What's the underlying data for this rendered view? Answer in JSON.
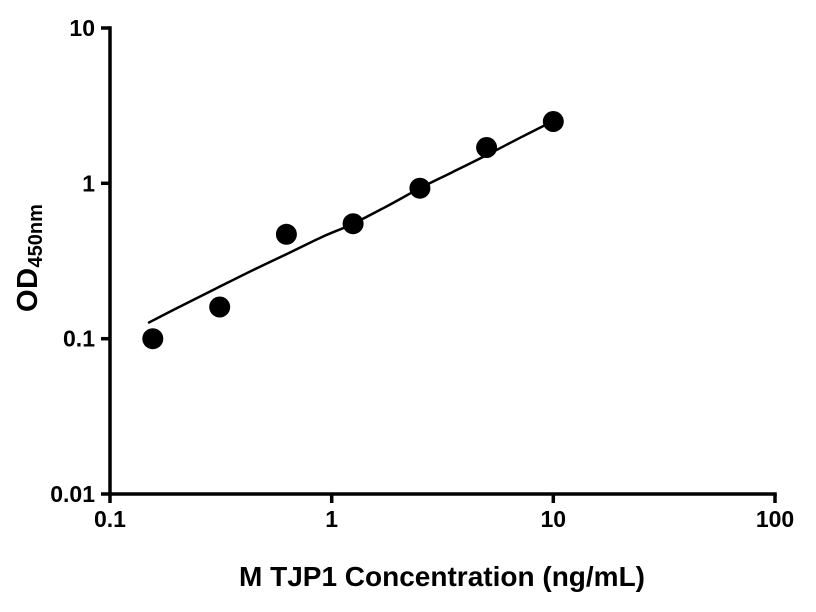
{
  "page": {
    "background": "#ffffff"
  },
  "chart_data": {
    "type": "scatter",
    "title": "",
    "xlabel": "M TJP1 Concentration (ng/mL)",
    "ylabel": "OD450nm",
    "ylabel_main": "OD",
    "ylabel_sub": "450nm",
    "x_scale": "log",
    "y_scale": "log",
    "xlim": [
      0.1,
      100
    ],
    "ylim": [
      0.01,
      10
    ],
    "grid": false,
    "legend": false,
    "axis_color": "#000000",
    "marker_color": "#000000",
    "line_color": "#000000",
    "x_ticks": [
      {
        "value": 0.1,
        "label": "0.1"
      },
      {
        "value": 1,
        "label": "1"
      },
      {
        "value": 10,
        "label": "10"
      },
      {
        "value": 100,
        "label": "100"
      }
    ],
    "y_ticks": [
      {
        "value": 0.01,
        "label": "0.01"
      },
      {
        "value": 0.1,
        "label": "0.1"
      },
      {
        "value": 1,
        "label": "1"
      },
      {
        "value": 10,
        "label": "10"
      }
    ],
    "points": {
      "x": [
        0.156,
        0.3125,
        0.625,
        1.25,
        2.5,
        5,
        10
      ],
      "y": [
        0.1,
        0.16,
        0.47,
        0.55,
        0.93,
        1.7,
        2.5
      ]
    },
    "fit_curve": {
      "x": [
        0.15,
        0.2,
        0.3,
        0.45,
        0.625,
        0.9,
        1.25,
        1.8,
        2.5,
        3.5,
        5,
        7,
        10
      ],
      "y": [
        0.127,
        0.157,
        0.21,
        0.28,
        0.35,
        0.45,
        0.55,
        0.72,
        0.93,
        1.18,
        1.52,
        1.95,
        2.52
      ]
    }
  }
}
